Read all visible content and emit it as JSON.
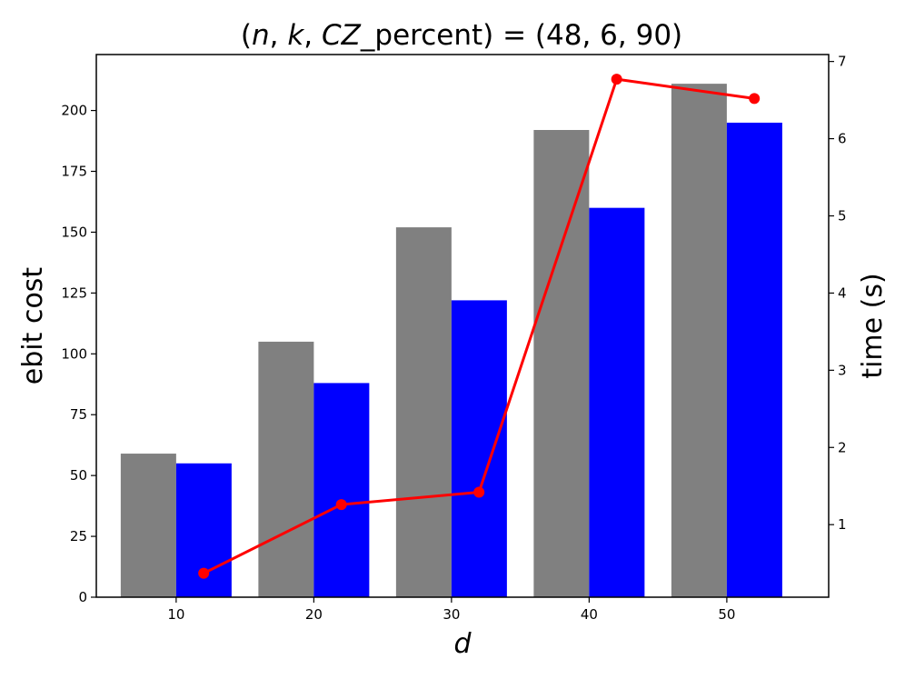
{
  "chart_data": {
    "type": "bar",
    "title": "(n, k, CZ_percent) = (48, 6, 90)",
    "xlabel": "d",
    "ylabel": "ebit cost",
    "y2label": "time (s)",
    "categories": [
      "10",
      "20",
      "30",
      "40",
      "50"
    ],
    "x": [
      10,
      20,
      30,
      40,
      50
    ],
    "series": [
      {
        "axis": "left",
        "kind": "bar",
        "color": "#808080",
        "values": [
          59,
          105,
          152,
          192,
          211
        ]
      },
      {
        "axis": "left",
        "kind": "bar",
        "color": "#0000ff",
        "values": [
          55,
          88,
          122,
          160,
          195
        ]
      },
      {
        "axis": "right",
        "kind": "line",
        "color": "#ff0000",
        "x": [
          12,
          22,
          32,
          42,
          52
        ],
        "values": [
          0.37,
          1.26,
          1.42,
          6.77,
          6.52
        ]
      }
    ],
    "ylim": [
      0,
      223
    ],
    "y2lim": [
      0.06,
      7.09
    ],
    "yticks": [
      0,
      25,
      50,
      75,
      100,
      125,
      150,
      175,
      200
    ],
    "y2ticks": [
      1,
      2,
      3,
      4,
      5,
      6,
      7
    ],
    "xticks": [
      10,
      20,
      30,
      40,
      50
    ],
    "xlim": [
      4.2,
      57.4
    ],
    "grid": false,
    "legend": "none"
  }
}
